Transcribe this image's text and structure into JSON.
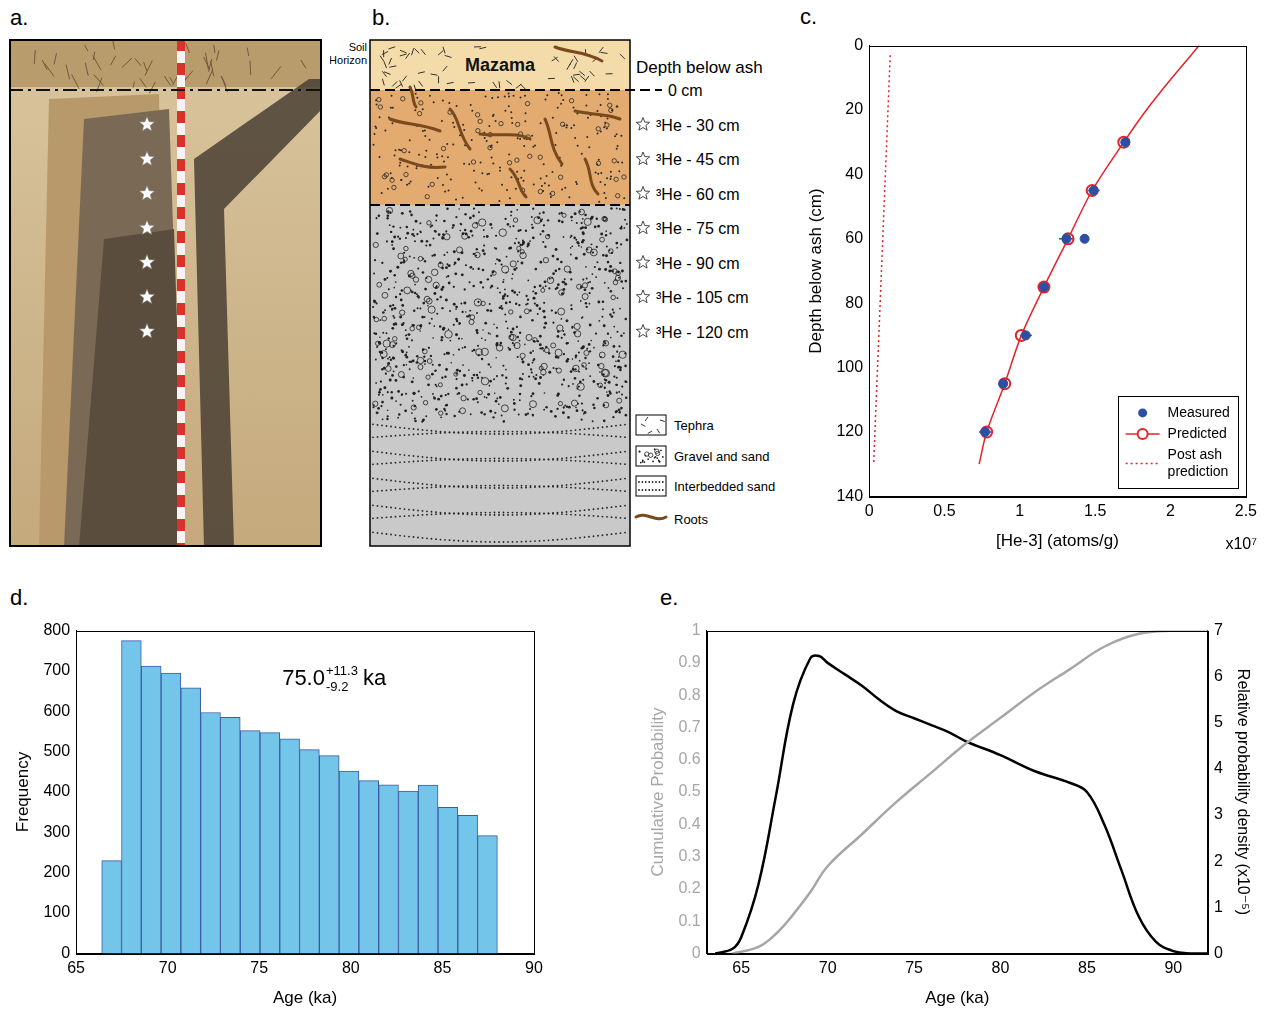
{
  "figure": {
    "a": {
      "label": "a."
    },
    "b": {
      "label": "b.",
      "soil_horizon": "Soil Horizon",
      "layer_label": "Mazama",
      "depth_title": "Depth below ash",
      "zero_label": "0 cm",
      "samples": [
        "³He - 30 cm",
        "³He - 45 cm",
        "³He - 60 cm",
        "³He - 75 cm",
        "³He - 90 cm",
        "³He - 105 cm",
        "³He - 120 cm"
      ],
      "key": [
        "Tephra",
        "Gravel and sand",
        "Interbedded sand",
        "Roots"
      ]
    }
  },
  "chart_data": [
    {
      "panel": "c.",
      "type": "scatter",
      "xlabel": "[He-3] (atoms/g)",
      "x_multiplier": "x10⁷",
      "ylabel": "Depth below ash (cm)",
      "xlim": [
        0,
        2.5
      ],
      "xticks": [
        0,
        0.5,
        1,
        1.5,
        2,
        2.5
      ],
      "ylim": [
        140,
        0
      ],
      "yticks": [
        0,
        20,
        40,
        60,
        80,
        100,
        120,
        140
      ],
      "grid": false,
      "legend": "lower right",
      "series": [
        {
          "name": "Measured",
          "type": "scatter",
          "marker": "circle",
          "color": "#2a4fa3",
          "x": [
            1.7,
            1.49,
            1.31,
            1.43,
            1.16,
            1.04,
            0.89,
            0.77
          ],
          "values": [
            30,
            45,
            60,
            60,
            75,
            90,
            105,
            120
          ],
          "x_err": [
            0.03,
            0.04,
            0.05,
            0.02,
            0.03,
            0.04,
            0.03,
            0.04
          ]
        },
        {
          "name": "Predicted",
          "type": "line",
          "line_style": "solid",
          "marker": "open_circle",
          "color": "#e3242b",
          "x": [
            1.69,
            1.48,
            1.32,
            1.16,
            1.01,
            0.9,
            0.78
          ],
          "values": [
            30,
            45,
            60,
            75,
            90,
            105,
            120
          ],
          "curve": {
            "x": [
              2.19,
              2.01,
              1.84,
              1.69,
              1.48,
              1.32,
              1.16,
              1.01,
              0.9,
              0.78,
              0.73
            ],
            "values": [
              0,
              10,
              20,
              30,
              45,
              60,
              75,
              90,
              105,
              120,
              130
            ]
          }
        },
        {
          "name": "Post ash prediction",
          "type": "line",
          "line_style": "dotted",
          "color": "#e3242b",
          "x": [
            0.14,
            0.03
          ],
          "values": [
            3,
            130
          ]
        }
      ]
    },
    {
      "panel": "d.",
      "type": "histogram",
      "xlabel": "Age (ka)",
      "ylabel": "Frequency",
      "xlim": [
        65,
        90
      ],
      "xticks": [
        65,
        70,
        75,
        80,
        85,
        90
      ],
      "ylim": [
        0,
        800
      ],
      "yticks": [
        0,
        100,
        200,
        300,
        400,
        500,
        600,
        700,
        800
      ],
      "grid": false,
      "color": "#73c6ea",
      "bins": [
        66.4,
        67.48,
        68.56,
        69.64,
        70.72,
        71.8,
        72.88,
        73.96,
        75.04,
        76.12,
        77.2,
        78.28,
        79.36,
        80.44,
        81.52,
        82.6,
        83.68,
        84.76,
        85.84,
        86.92,
        88.0
      ],
      "values": [
        230,
        775,
        712,
        695,
        658,
        597,
        585,
        552,
        547,
        532,
        505,
        490,
        452,
        428,
        418,
        402,
        417,
        362,
        342,
        292
      ],
      "annotation": {
        "text": "75.0",
        "upper": "+11.3",
        "lower": "-9.2",
        "unit": "ka"
      }
    },
    {
      "panel": "e.",
      "type": "line",
      "xlabel": "Age (ka)",
      "ylabel": "Cumulative Probability",
      "y2label": "Relative probability density (x10⁻⁵)",
      "xlim": [
        63,
        92
      ],
      "xticks": [
        65,
        70,
        75,
        80,
        85,
        90
      ],
      "ylim": [
        0,
        1
      ],
      "yticks": [
        0,
        0.1,
        0.2,
        0.3,
        0.4,
        0.5,
        0.6,
        0.7,
        0.8,
        0.9,
        1
      ],
      "y2lim": [
        0,
        7
      ],
      "y2ticks": [
        0,
        1,
        2,
        3,
        4,
        5,
        6,
        7
      ],
      "grid": false,
      "series": [
        {
          "color": "#a6a6a6",
          "x": [
            64.5,
            66,
            67,
            68,
            69,
            70,
            72,
            74,
            76,
            78,
            80,
            82,
            84,
            86,
            88,
            90,
            92
          ],
          "values": [
            0,
            0.02,
            0.06,
            0.12,
            0.19,
            0.27,
            0.37,
            0.47,
            0.56,
            0.65,
            0.73,
            0.81,
            0.88,
            0.95,
            0.99,
            1.0,
            1.0
          ]
        },
        {
          "color": "#000000",
          "axis": "y2",
          "x": [
            63.5,
            64.5,
            65,
            66,
            67,
            68,
            69,
            69.5,
            70,
            71,
            72,
            73,
            74,
            75,
            76,
            77,
            78,
            80,
            82,
            84,
            85,
            86,
            87,
            88,
            89,
            90,
            91,
            92
          ],
          "values": [
            0,
            0.1,
            0.35,
            1.5,
            3.4,
            5.4,
            6.4,
            6.45,
            6.3,
            6.05,
            5.8,
            5.5,
            5.25,
            5.1,
            4.95,
            4.8,
            4.6,
            4.3,
            3.95,
            3.7,
            3.5,
            2.8,
            1.8,
            0.8,
            0.25,
            0.05,
            0,
            0
          ]
        }
      ]
    }
  ]
}
